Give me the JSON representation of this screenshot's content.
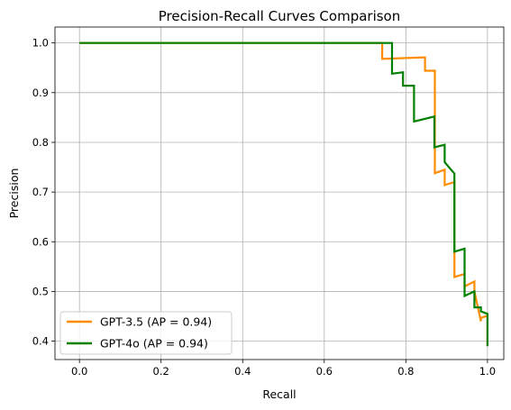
{
  "chart_data": {
    "type": "line",
    "title": "Precision-Recall Curves Comparison",
    "xlabel": "Recall",
    "ylabel": "Precision",
    "xlim": [
      -0.06,
      1.04
    ],
    "ylim": [
      0.363,
      1.032
    ],
    "xticks": [
      0.0,
      0.2,
      0.4,
      0.6,
      0.8,
      1.0
    ],
    "xtick_labels": [
      "0.0",
      "0.2",
      "0.4",
      "0.6",
      "0.8",
      "1.0"
    ],
    "yticks": [
      0.4,
      0.5,
      0.6,
      0.7,
      0.8,
      0.9,
      1.0
    ],
    "ytick_labels": [
      "0.4",
      "0.5",
      "0.6",
      "0.7",
      "0.8",
      "0.9",
      "1.0"
    ],
    "grid": true,
    "legend_position": "lower-left",
    "series": [
      {
        "name": "GPT-3.5 (AP = 0.94)",
        "color": "#ff8c00",
        "x": [
          0.0,
          0.742,
          0.742,
          0.847,
          0.847,
          0.871,
          0.871,
          0.871,
          0.895,
          0.895,
          0.919,
          0.919,
          0.919,
          0.944,
          0.944,
          0.968,
          0.968,
          0.984,
          0.984,
          1.0,
          1.0
        ],
        "y": [
          1.0,
          1.0,
          0.968,
          0.971,
          0.944,
          0.944,
          0.849,
          0.738,
          0.745,
          0.714,
          0.72,
          0.631,
          0.529,
          0.535,
          0.51,
          0.52,
          0.5,
          0.44,
          0.447,
          0.451,
          0.39
        ]
      },
      {
        "name": "GPT-4o (AP = 0.94)",
        "color": "#008000",
        "x": [
          0.0,
          0.766,
          0.766,
          0.793,
          0.793,
          0.82,
          0.82,
          0.87,
          0.87,
          0.895,
          0.895,
          0.919,
          0.919,
          0.919,
          0.944,
          0.944,
          0.968,
          0.968,
          0.984,
          0.984,
          1.0,
          1.0
        ],
        "y": [
          1.0,
          1.0,
          0.938,
          0.941,
          0.914,
          0.914,
          0.842,
          0.852,
          0.79,
          0.795,
          0.76,
          0.737,
          0.63,
          0.58,
          0.586,
          0.491,
          0.5,
          0.468,
          0.468,
          0.46,
          0.455,
          0.39
        ]
      }
    ]
  }
}
